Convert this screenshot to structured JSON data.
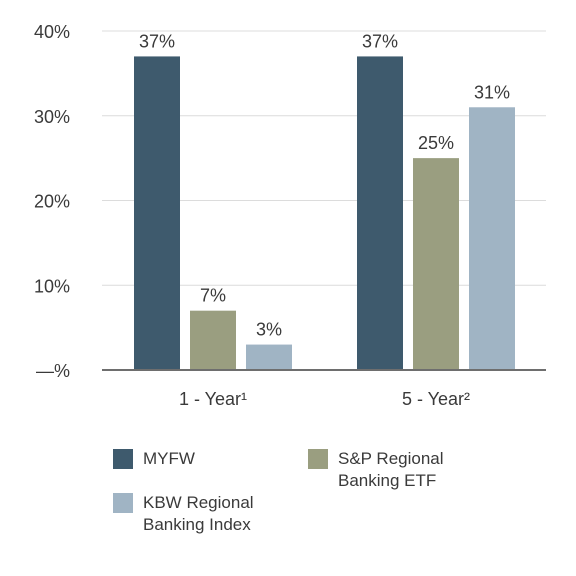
{
  "chart_data": {
    "type": "bar",
    "categories": [
      "1 - Year¹",
      "5 - Year²"
    ],
    "series": [
      {
        "name": "MYFW",
        "color": "#3e5a6d",
        "values": [
          37,
          37
        ],
        "labels": [
          "37%",
          "37%"
        ]
      },
      {
        "name": "S&P Regional Banking ETF",
        "color": "#9a9e80",
        "values": [
          7,
          25
        ],
        "labels": [
          "7%",
          "25%"
        ]
      },
      {
        "name": "KBW Regional Banking Index",
        "color": "#a0b4c4",
        "values": [
          3,
          31
        ],
        "labels": [
          "3%",
          "31%"
        ]
      }
    ],
    "ylim": [
      0,
      40
    ],
    "yticks": [
      {
        "value": 0,
        "label": "—%"
      },
      {
        "value": 10,
        "label": "10%"
      },
      {
        "value": 20,
        "label": "20%"
      },
      {
        "value": 30,
        "label": "30%"
      },
      {
        "value": 40,
        "label": "40%"
      }
    ],
    "grid": true,
    "legend": {
      "position": "bottom",
      "entries": [
        {
          "label_lines": [
            "MYFW"
          ]
        },
        {
          "label_lines": [
            "S&P Regional",
            "Banking ETF"
          ]
        },
        {
          "label_lines": [
            "KBW Regional",
            "Banking Index"
          ]
        }
      ]
    }
  }
}
